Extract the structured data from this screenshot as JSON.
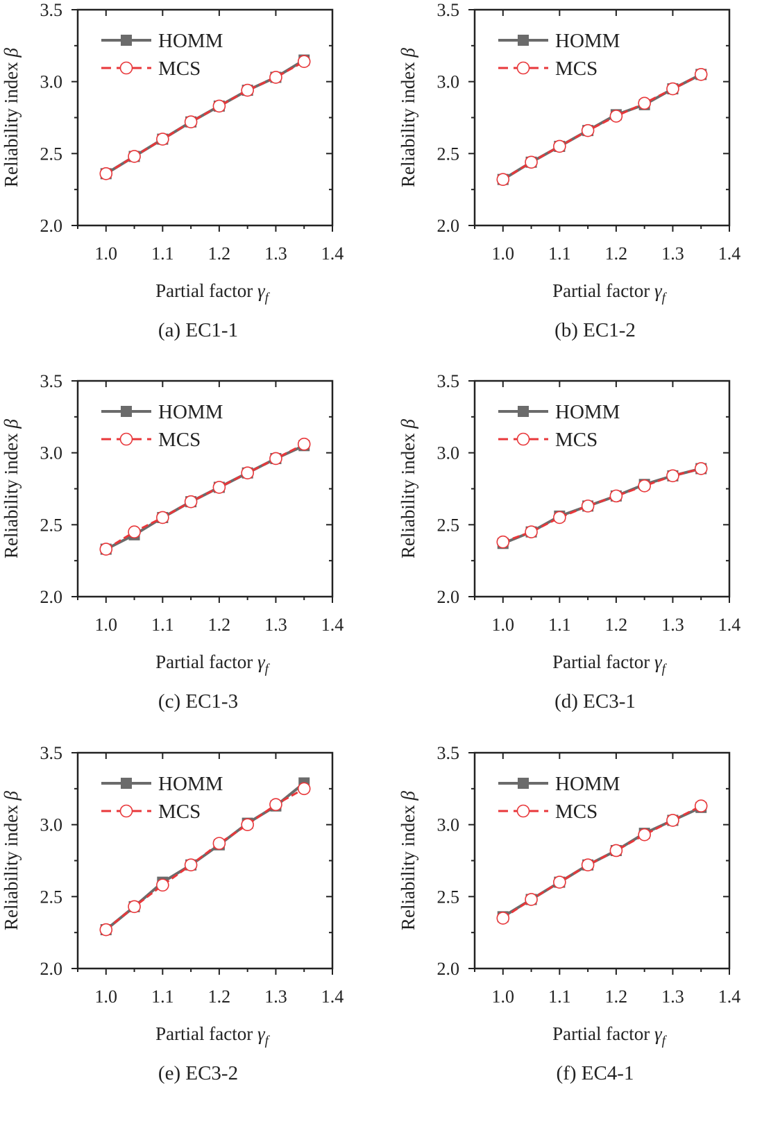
{
  "colors": {
    "homm": "#6b6b6b",
    "mcs": "#e8373a",
    "axis": "#222222"
  },
  "chart_data": [
    {
      "type": "line",
      "caption": "(a) EC1-1",
      "xlabel": "Partial factor",
      "xlabel_symbol": "γ",
      "xlabel_sub": "f",
      "ylabel": "Reliability index",
      "ylabel_symbol": "β",
      "xlim": [
        0.95,
        1.4
      ],
      "ylim": [
        2.0,
        3.5
      ],
      "xticks": [
        "1.0",
        "1.1",
        "1.2",
        "1.3",
        "1.4"
      ],
      "yticks": [
        "2.0",
        "2.5",
        "3.0",
        "3.5"
      ],
      "legend": "top-left",
      "x": [
        1.0,
        1.05,
        1.1,
        1.15,
        1.2,
        1.25,
        1.3,
        1.35
      ],
      "series": [
        {
          "name": "HOMM",
          "values": [
            2.36,
            2.48,
            2.6,
            2.72,
            2.83,
            2.94,
            3.03,
            3.15
          ]
        },
        {
          "name": "MCS",
          "values": [
            2.36,
            2.48,
            2.6,
            2.72,
            2.83,
            2.94,
            3.03,
            3.14
          ]
        }
      ]
    },
    {
      "type": "line",
      "caption": "(b) EC1-2",
      "xlabel": "Partial factor",
      "xlabel_symbol": "γ",
      "xlabel_sub": "f",
      "ylabel": "Reliability index",
      "ylabel_symbol": "β",
      "xlim": [
        0.95,
        1.4
      ],
      "ylim": [
        2.0,
        3.5
      ],
      "xticks": [
        "1.0",
        "1.1",
        "1.2",
        "1.3",
        "1.4"
      ],
      "yticks": [
        "2.0",
        "2.5",
        "3.0",
        "3.5"
      ],
      "legend": "top-left",
      "x": [
        1.0,
        1.05,
        1.1,
        1.15,
        1.2,
        1.25,
        1.3,
        1.35
      ],
      "series": [
        {
          "name": "HOMM",
          "values": [
            2.32,
            2.44,
            2.55,
            2.66,
            2.77,
            2.84,
            2.95,
            3.05
          ]
        },
        {
          "name": "MCS",
          "values": [
            2.32,
            2.44,
            2.55,
            2.66,
            2.76,
            2.85,
            2.95,
            3.05
          ]
        }
      ]
    },
    {
      "type": "line",
      "caption": "(c) EC1-3",
      "xlabel": "Partial factor",
      "xlabel_symbol": "γ",
      "xlabel_sub": "f",
      "ylabel": "Reliability index",
      "ylabel_symbol": "β",
      "xlim": [
        0.95,
        1.4
      ],
      "ylim": [
        2.0,
        3.5
      ],
      "xticks": [
        "1.0",
        "1.1",
        "1.2",
        "1.3",
        "1.4"
      ],
      "yticks": [
        "2.0",
        "2.5",
        "3.0",
        "3.5"
      ],
      "legend": "top-left",
      "x": [
        1.0,
        1.05,
        1.1,
        1.15,
        1.2,
        1.25,
        1.3,
        1.35
      ],
      "series": [
        {
          "name": "HOMM",
          "values": [
            2.33,
            2.43,
            2.55,
            2.66,
            2.76,
            2.86,
            2.96,
            3.05
          ]
        },
        {
          "name": "MCS",
          "values": [
            2.33,
            2.45,
            2.55,
            2.66,
            2.76,
            2.86,
            2.96,
            3.06
          ]
        }
      ]
    },
    {
      "type": "line",
      "caption": "(d) EC3-1",
      "xlabel": "Partial factor",
      "xlabel_symbol": "γ",
      "xlabel_sub": "f",
      "ylabel": "Reliability index",
      "ylabel_symbol": "β",
      "xlim": [
        0.95,
        1.4
      ],
      "ylim": [
        2.0,
        3.5
      ],
      "xticks": [
        "1.0",
        "1.1",
        "1.2",
        "1.3",
        "1.4"
      ],
      "yticks": [
        "2.0",
        "2.5",
        "3.0",
        "3.5"
      ],
      "legend": "top-left",
      "x": [
        1.0,
        1.05,
        1.1,
        1.15,
        1.2,
        1.25,
        1.3,
        1.35
      ],
      "series": [
        {
          "name": "HOMM",
          "values": [
            2.37,
            2.45,
            2.56,
            2.63,
            2.7,
            2.78,
            2.84,
            2.89
          ]
        },
        {
          "name": "MCS",
          "values": [
            2.38,
            2.45,
            2.55,
            2.63,
            2.7,
            2.77,
            2.84,
            2.89
          ]
        }
      ]
    },
    {
      "type": "line",
      "caption": "(e) EC3-2",
      "xlabel": "Partial factor",
      "xlabel_symbol": "γ",
      "xlabel_sub": "f",
      "ylabel": "Reliability index",
      "ylabel_symbol": "β",
      "xlim": [
        0.95,
        1.4
      ],
      "ylim": [
        2.0,
        3.5
      ],
      "xticks": [
        "1.0",
        "1.1",
        "1.2",
        "1.3",
        "1.4"
      ],
      "yticks": [
        "2.0",
        "2.5",
        "3.0",
        "3.5"
      ],
      "legend": "top-left",
      "x": [
        1.0,
        1.05,
        1.1,
        1.15,
        1.2,
        1.25,
        1.3,
        1.35
      ],
      "series": [
        {
          "name": "HOMM",
          "values": [
            2.27,
            2.43,
            2.6,
            2.72,
            2.86,
            3.01,
            3.13,
            3.29
          ]
        },
        {
          "name": "MCS",
          "values": [
            2.27,
            2.43,
            2.58,
            2.72,
            2.87,
            3.0,
            3.14,
            3.25
          ]
        }
      ]
    },
    {
      "type": "line",
      "caption": "(f) EC4-1",
      "xlabel": "Partial factor",
      "xlabel_symbol": "γ",
      "xlabel_sub": "f",
      "ylabel": "Reliability index",
      "ylabel_symbol": "β",
      "xlim": [
        0.95,
        1.4
      ],
      "ylim": [
        2.0,
        3.5
      ],
      "xticks": [
        "1.0",
        "1.1",
        "1.2",
        "1.3",
        "1.4"
      ],
      "yticks": [
        "2.0",
        "2.5",
        "3.0",
        "3.5"
      ],
      "legend": "top-left",
      "x": [
        1.0,
        1.05,
        1.1,
        1.15,
        1.2,
        1.25,
        1.3,
        1.35
      ],
      "series": [
        {
          "name": "HOMM",
          "values": [
            2.36,
            2.48,
            2.6,
            2.72,
            2.82,
            2.94,
            3.03,
            3.12
          ]
        },
        {
          "name": "MCS",
          "values": [
            2.35,
            2.48,
            2.6,
            2.72,
            2.82,
            2.93,
            3.03,
            3.13
          ]
        }
      ]
    }
  ]
}
